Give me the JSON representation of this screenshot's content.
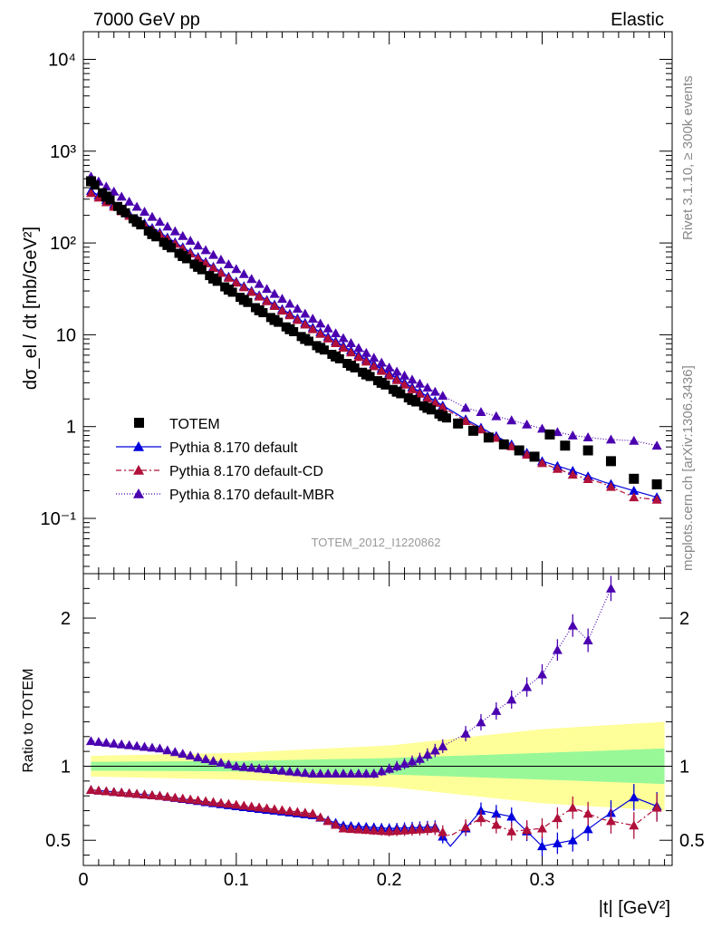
{
  "header": {
    "left": "7000 GeV pp",
    "right": "Elastic"
  },
  "side_labels": {
    "rivet": "Rivet 3.1.10, ≥ 300k events",
    "mcplots": "mcplots.cern.ch [arXiv:1306.3436]"
  },
  "analysis_id": "TOTEM_2012_I1220862",
  "colors": {
    "totem": "#000000",
    "default": "#0000dd",
    "cd": "#b0103a",
    "mbr": "#4b00b0",
    "band_inner": "#98f898",
    "band_outer": "#ffff99"
  },
  "chart_data": [
    {
      "type": "scatter",
      "panel": "main",
      "ylabel": "dσ_el / dt [mb/GeV²]",
      "yscale": "log",
      "ylim": [
        0.025,
        20000
      ],
      "xlim": [
        0,
        0.385
      ],
      "ytick_labels": [
        "10⁻¹",
        "1",
        "10",
        "10²",
        "10³",
        "10⁴"
      ],
      "legend": [
        "TOTEM",
        "Pythia 8.170 default",
        "Pythia 8.170 default-CD",
        "Pythia 8.170 default-MBR"
      ],
      "legend_position": "lower-left",
      "series": [
        {
          "name": "TOTEM",
          "x": [
            0.005,
            0.015,
            0.025,
            0.035,
            0.045,
            0.055,
            0.065,
            0.075,
            0.085,
            0.095,
            0.105,
            0.115,
            0.125,
            0.135,
            0.145,
            0.155,
            0.165,
            0.175,
            0.185,
            0.195,
            0.205,
            0.215,
            0.225,
            0.235,
            0.245,
            0.255,
            0.265,
            0.275,
            0.285,
            0.295,
            0.305,
            0.315,
            0.33,
            0.345,
            0.36,
            0.375
          ],
          "y": [
            470,
            320,
            230,
            170,
            125,
            95,
            72,
            55,
            41,
            31,
            24,
            18.5,
            14.5,
            11.5,
            9,
            7.2,
            5.8,
            4.6,
            3.7,
            3,
            2.4,
            1.95,
            1.6,
            1.3,
            1.08,
            0.9,
            0.76,
            0.64,
            0.55,
            0.47,
            0.82,
            0.62,
            0.55,
            0.42,
            0.27,
            0.235
          ]
        },
        {
          "name": "Pythia 8.170 default",
          "x": [
            0.005,
            0.05,
            0.1,
            0.15,
            0.2,
            0.25,
            0.3,
            0.32,
            0.34,
            0.36,
            0.375
          ],
          "y": [
            370,
            130,
            38,
            12,
            3.8,
            1.2,
            0.42,
            0.33,
            0.25,
            0.2,
            0.17
          ]
        },
        {
          "name": "Pythia 8.170 default-CD",
          "x": [
            0.005,
            0.05,
            0.1,
            0.15,
            0.2,
            0.25,
            0.3,
            0.32,
            0.34,
            0.36,
            0.375
          ],
          "y": [
            350,
            125,
            37,
            11.5,
            3.6,
            1.15,
            0.4,
            0.3,
            0.24,
            0.17,
            0.16
          ]
        },
        {
          "name": "Pythia 8.170 default-MBR",
          "x": [
            0.005,
            0.05,
            0.1,
            0.15,
            0.2,
            0.25,
            0.3,
            0.32,
            0.34,
            0.36,
            0.375
          ],
          "y": [
            530,
            170,
            52,
            15,
            4.4,
            1.6,
            0.95,
            0.8,
            0.73,
            0.7,
            0.62
          ]
        }
      ]
    },
    {
      "type": "line",
      "panel": "ratio",
      "ylabel": "Ratio to TOTEM",
      "xlabel": "|t| [GeV²]",
      "ylim": [
        0.33,
        2.3
      ],
      "xlim": [
        0,
        0.385
      ],
      "xtick_labels": [
        "0",
        "0.1",
        "0.2",
        "0.3"
      ],
      "ytick_labels": [
        "0.5",
        "1",
        "2"
      ],
      "band": {
        "x": [
          0.005,
          0.1,
          0.2,
          0.3,
          0.38
        ],
        "inner": [
          0.03,
          0.035,
          0.055,
          0.09,
          0.12
        ],
        "outer": [
          0.07,
          0.09,
          0.14,
          0.25,
          0.3
        ]
      },
      "series": [
        {
          "name": "Pythia 8.170 default",
          "x": [
            0.005,
            0.05,
            0.1,
            0.15,
            0.17,
            0.2,
            0.23,
            0.24,
            0.26,
            0.28,
            0.3,
            0.32,
            0.34,
            0.36,
            0.375
          ],
          "y": [
            0.84,
            0.8,
            0.73,
            0.67,
            0.6,
            0.58,
            0.59,
            0.46,
            0.7,
            0.66,
            0.46,
            0.5,
            0.65,
            0.79,
            0.73
          ]
        },
        {
          "name": "Pythia 8.170 default-CD",
          "x": [
            0.005,
            0.05,
            0.1,
            0.15,
            0.17,
            0.2,
            0.23,
            0.24,
            0.26,
            0.28,
            0.3,
            0.32,
            0.34,
            0.36,
            0.375
          ],
          "y": [
            0.84,
            0.8,
            0.74,
            0.68,
            0.58,
            0.56,
            0.58,
            0.53,
            0.65,
            0.56,
            0.58,
            0.72,
            0.64,
            0.6,
            0.72
          ]
        },
        {
          "name": "Pythia 8.170 default-MBR",
          "x": [
            0.005,
            0.05,
            0.1,
            0.15,
            0.19,
            0.22,
            0.25,
            0.28,
            0.3,
            0.32,
            0.33,
            0.345
          ],
          "y": [
            1.17,
            1.12,
            1.0,
            0.95,
            0.95,
            1.05,
            1.22,
            1.45,
            1.62,
            1.95,
            1.85,
            2.2
          ]
        }
      ]
    }
  ]
}
